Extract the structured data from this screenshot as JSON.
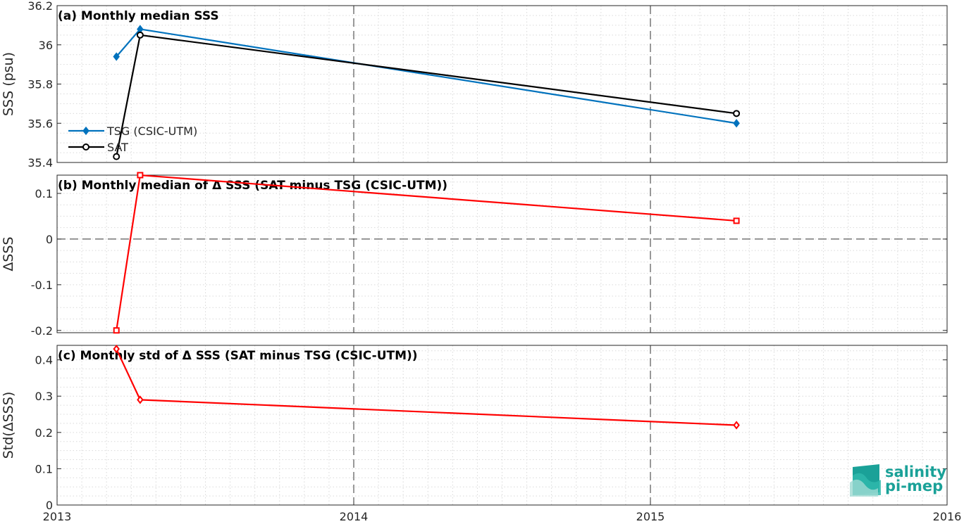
{
  "logo": {
    "line1": "salinity",
    "line2": "pi-mep"
  },
  "colors": {
    "tsg": "#0072bd",
    "sat": "#000000",
    "delta": "#ff0000",
    "grid": "#d9d9d9",
    "axis": "#262626",
    "logo": "#1aa198"
  },
  "chart_data": [
    {
      "type": "line",
      "title": "(a) Monthly median SSS",
      "ylabel": "SSS (psu)",
      "xlim": [
        2013,
        2016
      ],
      "ylim": [
        35.4,
        36.2
      ],
      "x_ticks": [
        "2013",
        "2014",
        "2015",
        "2016"
      ],
      "y_ticks": [
        "35.4",
        "35.6",
        "35.8",
        "36",
        "36.2"
      ],
      "legend_placement": "lower-left",
      "grid": true,
      "series": [
        {
          "name": "TSG (CSIC-UTM)",
          "marker": "diamond",
          "color": "#0072bd",
          "x": [
            2013.2,
            2013.28,
            2015.29
          ],
          "y": [
            35.94,
            36.08,
            35.6
          ]
        },
        {
          "name": "SAT",
          "marker": "circle",
          "color": "#000000",
          "x": [
            2013.2,
            2013.28,
            2015.29
          ],
          "y": [
            35.43,
            36.05,
            35.65
          ]
        }
      ]
    },
    {
      "type": "line",
      "title": "(b) Monthly median of Δ SSS (SAT minus TSG (CSIC-UTM))",
      "ylabel": "ΔSSS",
      "xlim": [
        2013,
        2016
      ],
      "ylim": [
        -0.205,
        0.14
      ],
      "y_ticks": [
        "-0.2",
        "-0.1",
        "0",
        "0.1"
      ],
      "zero_line": true,
      "grid": true,
      "series": [
        {
          "marker": "square",
          "color": "#ff0000",
          "x": [
            2013.2,
            2013.28,
            2015.29
          ],
          "y": [
            -0.2,
            0.14,
            0.04
          ]
        }
      ]
    },
    {
      "type": "line",
      "title": "(c) Monthly std of Δ SSS (SAT minus TSG (CSIC-UTM))",
      "ylabel": "Std(ΔSSS)",
      "xlim": [
        2013,
        2016
      ],
      "ylim": [
        0,
        0.44
      ],
      "y_ticks": [
        "0",
        "0.1",
        "0.2",
        "0.3",
        "0.4"
      ],
      "grid": true,
      "series": [
        {
          "marker": "diamond",
          "color": "#ff0000",
          "x": [
            2013.2,
            2013.28,
            2015.29
          ],
          "y": [
            0.43,
            0.29,
            0.22
          ]
        }
      ]
    }
  ]
}
